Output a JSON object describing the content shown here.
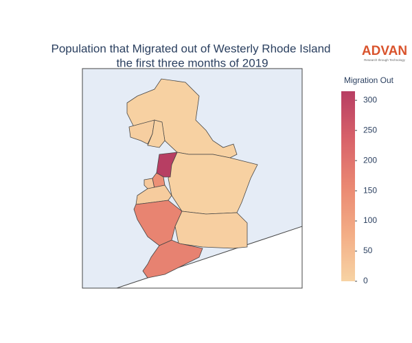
{
  "chart_data": {
    "type": "choropleth",
    "title": "Population that Migrated out of Westerly Rhode Island",
    "subtitle": "the first three months of 2019",
    "logo": "ADVAN",
    "logo_tagline": "Research through Technology",
    "colorbar_title": "Migration Out",
    "values": [
      5,
      10,
      5,
      5,
      315,
      140,
      20,
      15,
      165,
      8,
      170
    ],
    "clim": [
      0,
      315
    ],
    "cticks": [
      0,
      50,
      100,
      150,
      200,
      250,
      300
    ],
    "colorscale": [
      "#f7d3a4",
      "#f3ad86",
      "#ea8872",
      "#d8626a",
      "#b73e63"
    ]
  }
}
